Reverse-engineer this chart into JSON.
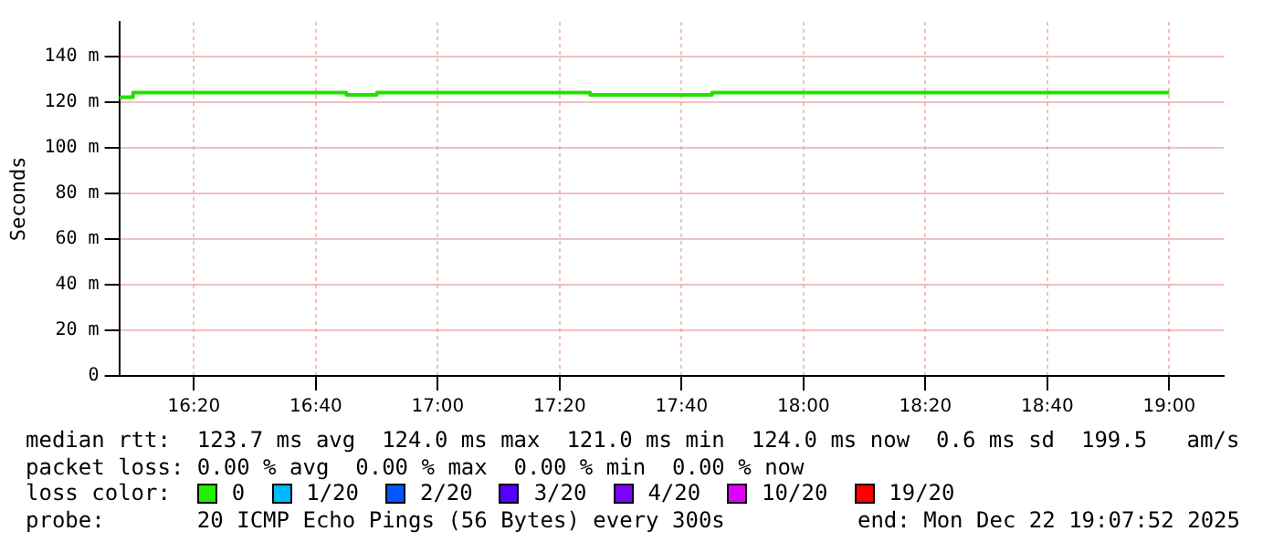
{
  "chart_data": {
    "type": "step",
    "ylabel": "Seconds",
    "x": [
      16.1333,
      16.1667,
      16.25,
      16.3333,
      16.4167,
      16.5,
      16.5833,
      16.6667,
      16.75,
      16.8333,
      16.9167,
      17,
      17.0833,
      17.1667,
      17.25,
      17.3333,
      17.4167,
      17.5,
      17.5833,
      17.6667,
      17.75,
      17.8333,
      17.9167,
      18,
      18.0833,
      18.1667,
      18.25,
      18.3333,
      18.4167,
      18.5,
      18.5833,
      18.6667,
      18.75,
      18.8333,
      18.9167,
      19
    ],
    "series": [
      {
        "color": "#22e000",
        "values": [
          121,
          122,
          124,
          124,
          124,
          124,
          124,
          124,
          124,
          123,
          124,
          124,
          124,
          124,
          124,
          124,
          124,
          123,
          123,
          123,
          123,
          124,
          124,
          124,
          124,
          124,
          124,
          124,
          124,
          124,
          124,
          124,
          124,
          124,
          124,
          124
        ]
      }
    ],
    "xlim": [
      16.129,
      19.149
    ],
    "ylim": [
      0,
      155
    ],
    "xticks": [
      {
        "value": 16.3333,
        "label": "16:20"
      },
      {
        "value": 16.6667,
        "label": "16:40"
      },
      {
        "value": 17,
        "label": "17:00"
      },
      {
        "value": 17.3333,
        "label": "17:20"
      },
      {
        "value": 17.6667,
        "label": "17:40"
      },
      {
        "value": 18,
        "label": "18:00"
      },
      {
        "value": 18.3333,
        "label": "18:20"
      },
      {
        "value": 18.6667,
        "label": "18:40"
      },
      {
        "value": 19,
        "label": "19:00"
      }
    ],
    "yticks": [
      0,
      {
        "value": 20,
        "label": "20 m"
      },
      {
        "value": 40,
        "label": "40 m"
      },
      {
        "value": 60,
        "label": "60 m"
      },
      {
        "value": 80,
        "label": "80 m"
      },
      {
        "value": 100,
        "label": "100 m"
      },
      {
        "value": 120,
        "label": "120 m"
      },
      {
        "value": 140,
        "label": "140 m"
      }
    ],
    "grid": true,
    "legend": false,
    "marker": "none",
    "line_style": "solid",
    "annotations": [
      "median rtt:  123.7 ms avg  124.0 ms max  121.0 ms min  124.0 ms now  0.6 ms sd  199.5   am/s",
      "packet loss: 0.00 % avg  0.00 % max  0.00 % min  0.00 % now",
      "loss color:",
      "0",
      "1/20",
      "2/20",
      "3/20",
      "4/20",
      "10/20",
      "19/20",
      "probe:       20 ICMP Echo Pings (56 Bytes) every 300s",
      "end: Mon Dec 22 19:07:52 2025"
    ]
  }
}
